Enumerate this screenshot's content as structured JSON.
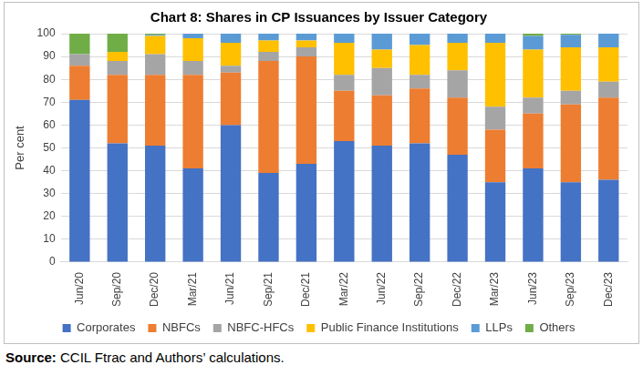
{
  "chart_data": {
    "type": "bar",
    "title": "Chart 8: Shares in CP Issuances by Issuer Category",
    "source": "Source: CCIL Ftrac and Authors’ calculations.",
    "y_label": "Per cent",
    "categories": [
      "Jun/20",
      "Sep/20",
      "Dec/20",
      "Mar/21",
      "Jun/21",
      "Sep/21",
      "Dec/21",
      "Mar/22",
      "Jun/22",
      "Sep/22",
      "Dec/22",
      "Mar/23",
      "Jun/23",
      "Sep/23",
      "Dec/23"
    ],
    "series": [
      {
        "name": "Corporates",
        "color": "#4472c4",
        "values": [
          71,
          52,
          51,
          41,
          60,
          39,
          43,
          53,
          51,
          52,
          47,
          35,
          41,
          35,
          36
        ]
      },
      {
        "name": "NBFCs",
        "color": "#ed7d31",
        "values": [
          15,
          30,
          31,
          41,
          23,
          49,
          47,
          22,
          22,
          24,
          25,
          23,
          24,
          34,
          36
        ]
      },
      {
        "name": "NBFC-HFCs",
        "color": "#a5a5a5",
        "values": [
          5,
          6,
          9,
          6,
          3,
          4,
          4,
          7,
          12,
          6,
          12,
          10,
          7,
          6,
          7
        ]
      },
      {
        "name": "Public Finance Institutions",
        "color": "#ffc000",
        "values": [
          0,
          4,
          8,
          10,
          10,
          5,
          3,
          14,
          8,
          13,
          12,
          28,
          21,
          19,
          15
        ]
      },
      {
        "name": "LLPs",
        "color": "#5b9bd5",
        "values": [
          0,
          0,
          0.5,
          2,
          4,
          3,
          3,
          4,
          7,
          5,
          4,
          4,
          6,
          5.5,
          6
        ]
      },
      {
        "name": "Others",
        "color": "#70ad47",
        "values": [
          9,
          8,
          0.5,
          0,
          0,
          0,
          0,
          0,
          0,
          0,
          0,
          0,
          1,
          0.5,
          0
        ]
      }
    ],
    "stacked": true,
    "ylim": [
      0,
      100
    ],
    "yticks": [
      0,
      10,
      20,
      30,
      40,
      50,
      60,
      70,
      80,
      90,
      100
    ],
    "grid": true,
    "legend": "bottom"
  }
}
